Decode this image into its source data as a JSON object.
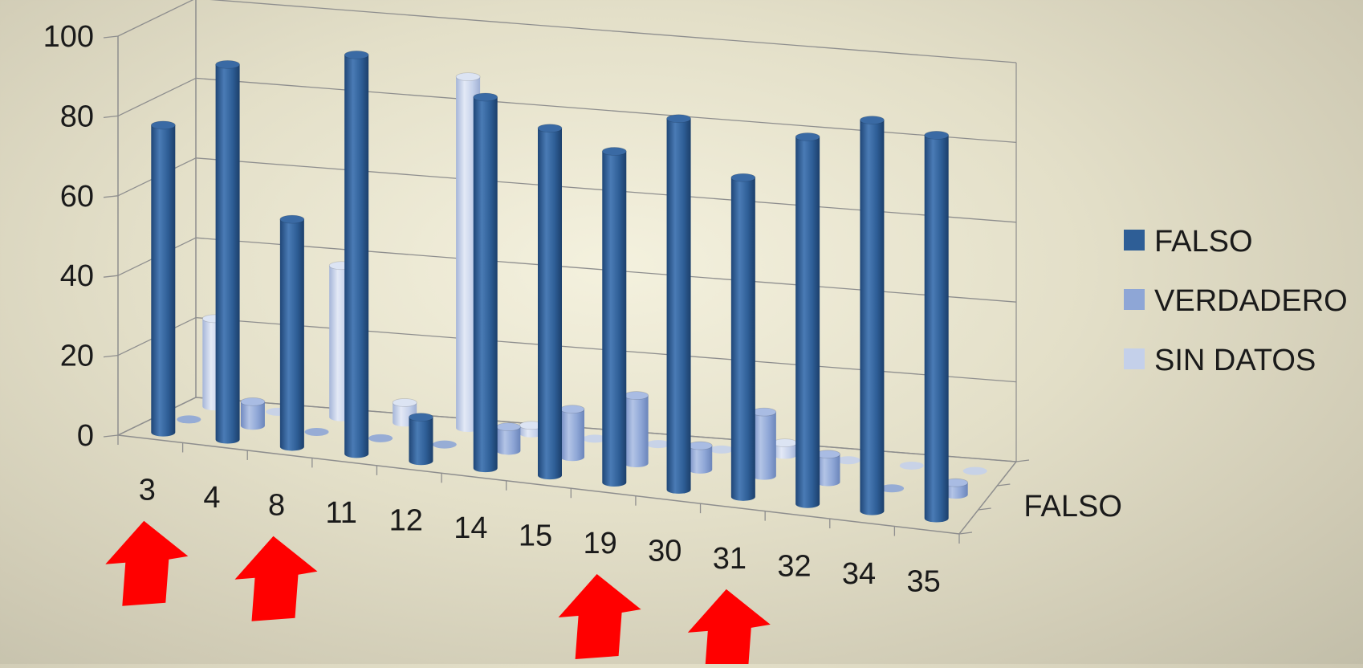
{
  "chart_data": {
    "type": "bar",
    "subtype": "3d-cylinder",
    "title": "",
    "xlabel": "",
    "ylabel": "",
    "ylim": [
      0,
      100
    ],
    "yticks": [
      0,
      20,
      40,
      60,
      80,
      100
    ],
    "grid": true,
    "legend_position": "right",
    "depth_axis_label": "FALSO",
    "categories": [
      "3",
      "4",
      "8",
      "11",
      "12",
      "14",
      "15",
      "19",
      "30",
      "31",
      "32",
      "34",
      "35"
    ],
    "series": [
      {
        "name": "FALSO",
        "color": "#2e5e96",
        "values": [
          77,
          94,
          57,
          100,
          11,
          93,
          87,
          83,
          93,
          80,
          92,
          98,
          96
        ]
      },
      {
        "name": "VERDADERO",
        "color": "#8ea6d6",
        "values": [
          0,
          6,
          0,
          0,
          0,
          6,
          12,
          17,
          6,
          16,
          7,
          0,
          3
        ]
      },
      {
        "name": "SIN DATOS",
        "color": "#c4d0ea",
        "values": [
          22,
          0,
          38,
          5,
          88,
          2,
          0,
          0,
          0,
          3,
          0,
          0,
          0
        ]
      }
    ],
    "annotations": {
      "arrow_color": "#ff0000",
      "arrow_icon": "red-up-arrow-icon",
      "highlighted_categories": [
        "3",
        "8",
        "19",
        "31"
      ]
    }
  }
}
